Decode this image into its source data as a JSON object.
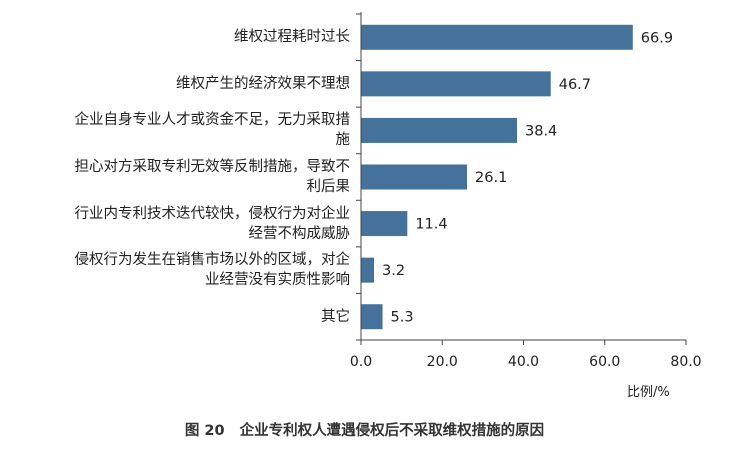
{
  "chart_data": {
    "type": "bar",
    "orientation": "horizontal",
    "categories": [
      "维权过程耗时过长",
      "维权产生的经济效果不理想",
      "企业自身专业人才或资金不足，无力采取措施",
      "担心对方采取专利无效等反制措施，导致不利后果",
      "行业内专利技术迭代较快，侵权行为对企业经营不构成威胁",
      "侵权行为发生在销售市场以外的区域，对企业经营没有实质性影响",
      "其它"
    ],
    "category_lines": [
      [
        "维权过程耗时过长"
      ],
      [
        "维权产生的经济效果不理想"
      ],
      [
        "企业自身专业人才或资金不足，无力采取措",
        "施"
      ],
      [
        "担心对方采取专利无效等反制措施，导致不",
        "利后果"
      ],
      [
        "行业内专利技术迭代较快，侵权行为对企业",
        "经营不构成威胁"
      ],
      [
        "侵权行为发生在销售市场以外的区域，对企",
        "业经营没有实质性影响"
      ],
      [
        "其它"
      ]
    ],
    "values": [
      66.9,
      46.7,
      38.4,
      26.1,
      11.4,
      3.2,
      5.3
    ],
    "value_labels": [
      "66.9",
      "46.7",
      "38.4",
      "26.1",
      "11.4",
      "3.2",
      "5.3"
    ],
    "xlim": [
      0,
      80
    ],
    "x_ticks": [
      0,
      20,
      40,
      60,
      80
    ],
    "x_tick_labels": [
      "0.0",
      "20.0",
      "40.0",
      "60.0",
      "80.0"
    ],
    "xlabel": "比例/%",
    "bar_color": "#44729a",
    "grid": false
  },
  "caption": {
    "figure_no": "图 20",
    "title": "企业专利权人遭遇侵权后不采取维权措施的原因"
  }
}
